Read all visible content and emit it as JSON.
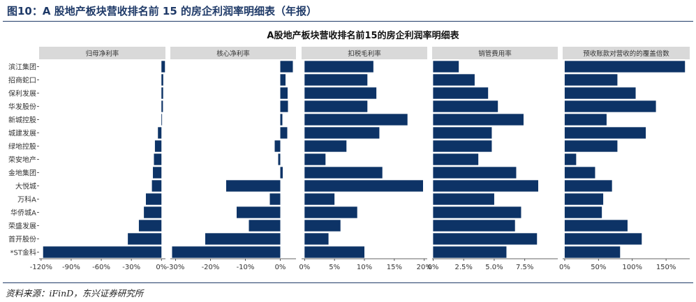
{
  "figure": {
    "title": "图10：A 股地产板块营收排名前 15 的房企利润率明细表（年报）",
    "source": "资料来源：iFinD，东兴证券研究所"
  },
  "colors": {
    "bar": "#0d3366",
    "strip": "#d9d9d9",
    "axis": "#333333",
    "heading": "#1f3a68"
  },
  "chart_data": {
    "type": "bar",
    "orientation": "horizontal",
    "title": "A股地产板块营收排名前15的房企利润率明细表",
    "categories": [
      "滨江集团",
      "招商蛇口",
      "保利发展",
      "华发股份",
      "新城控股",
      "城建发展",
      "绿地控股",
      "荣安地产",
      "金地集团",
      "大悦城",
      "万科A",
      "华侨城A",
      "荣盛发展",
      "首开股份",
      "*ST金科"
    ],
    "panels": [
      {
        "name": "归母净利率",
        "xlim": [
          -122,
          4
        ],
        "ticks": [
          -120,
          -90,
          -60,
          -30,
          0
        ],
        "tick_labels": [
          "-120%",
          "-90%",
          "-60%",
          "-30%",
          "0%"
        ],
        "values": [
          3.5,
          1.8,
          1.7,
          1.5,
          0.6,
          -3.5,
          -6.5,
          -7.5,
          -8.5,
          -9.5,
          -15.5,
          -17.5,
          -22.5,
          -33.5,
          -118
        ]
      },
      {
        "name": "核心净利率",
        "xlim": [
          -31.5,
          4.5
        ],
        "ticks": [
          -30,
          -20,
          -10,
          0
        ],
        "tick_labels": [
          "-30%",
          "-20%",
          "-10%",
          "0%"
        ],
        "values": [
          3.6,
          1.5,
          2.1,
          2.2,
          0.6,
          2.0,
          -1.6,
          -0.6,
          0.7,
          -15.5,
          -3.0,
          -12.5,
          -9.0,
          -21.5,
          -31.0
        ]
      },
      {
        "name": "扣税毛利率",
        "xlim": [
          -0.5,
          20.5
        ],
        "ticks": [
          0,
          5,
          10,
          15,
          20
        ],
        "tick_labels": [
          "0%",
          "5%",
          "10%",
          "15%",
          "20%"
        ],
        "values": [
          11.5,
          10.5,
          12.0,
          10.5,
          17.2,
          12.5,
          7.0,
          3.5,
          13.0,
          19.8,
          5.0,
          8.8,
          6.0,
          4.0,
          10.0
        ]
      },
      {
        "name": "销管费用率",
        "xlim": [
          -0.08,
          10.2
        ],
        "ticks": [
          0,
          2.5,
          5.0,
          7.5
        ],
        "tick_labels": [
          "0%",
          "2.5%",
          "5.0%",
          "7.5%"
        ],
        "values": [
          2.1,
          3.4,
          4.5,
          5.3,
          7.4,
          4.8,
          4.8,
          3.7,
          6.8,
          8.6,
          5.0,
          7.2,
          6.7,
          8.5,
          6.0
        ]
      },
      {
        "name": "预收账款对营收的的覆盖倍数",
        "xlim": [
          -3,
          185
        ],
        "ticks": [
          0,
          50,
          100,
          150
        ],
        "tick_labels": [
          "0%",
          "50%",
          "100%",
          "150%"
        ],
        "values": [
          178,
          78,
          105,
          135,
          62,
          120,
          78,
          17,
          45,
          70,
          57,
          55,
          93,
          114,
          82
        ]
      }
    ]
  }
}
